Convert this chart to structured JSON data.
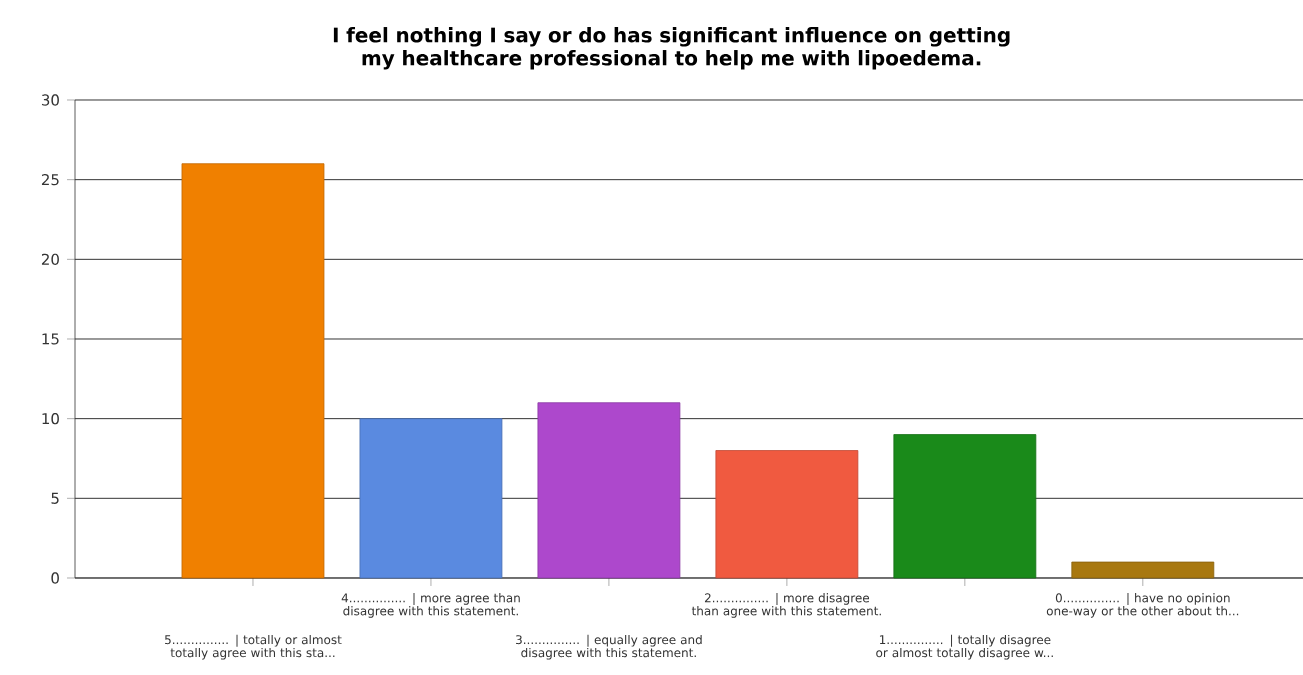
{
  "chart_data": {
    "type": "bar",
    "title": "I feel nothing I say or do has significant influence on getting my healthcare professional to help me with lipoedema.",
    "categories": [
      "5............... | totally or almost totally agree with this sta...",
      "4............... | more agree than disagree with this statement.",
      "3............... | equally agree and disagree with this statement.",
      "2............... | more disagree than agree with this statement.",
      "1............... | totally disagree or almost totally disagree w...",
      "0............... | have no opinion one-way or the other about th..."
    ],
    "values": [
      26,
      10,
      11,
      8,
      9,
      1
    ],
    "colors": [
      "#f08000",
      "#5a8ae0",
      "#ad48cc",
      "#f05a40",
      "#1a8a1a",
      "#a87810"
    ],
    "ylim": [
      0,
      30
    ],
    "yticks": [
      0,
      5,
      10,
      15,
      20,
      25,
      30
    ],
    "grid": "y"
  }
}
